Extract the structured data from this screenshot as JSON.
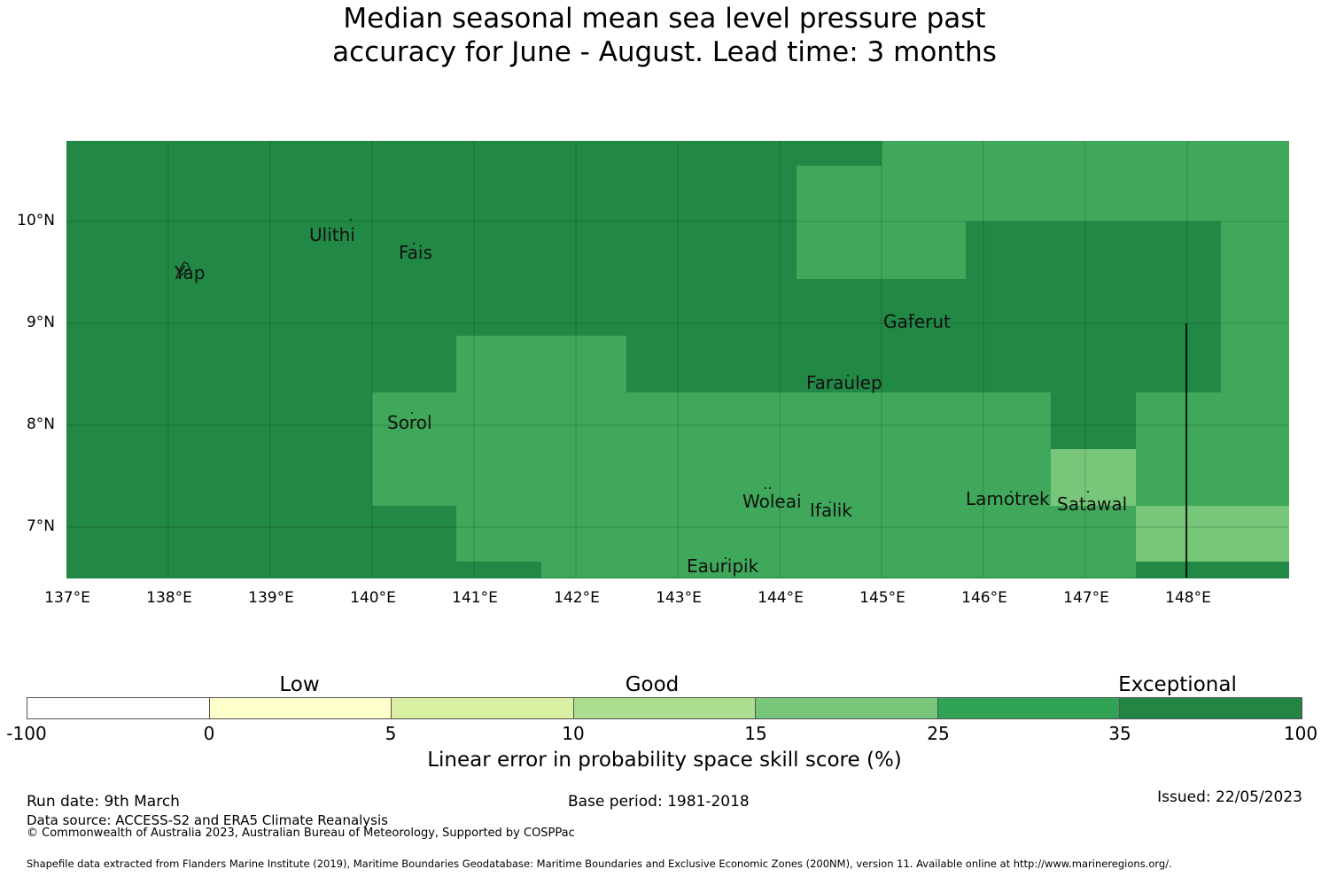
{
  "title": {
    "line1": "Median seasonal mean sea level pressure past",
    "line2": "accuracy for June - August. Lead time: 3 months"
  },
  "map": {
    "lat_labels": [
      "10°N",
      "9°N",
      "8°N",
      "7°N"
    ],
    "lon_labels": [
      "137°E",
      "138°E",
      "139°E",
      "140°E",
      "141°E",
      "142°E",
      "143°E",
      "144°E",
      "145°E",
      "146°E",
      "147°E",
      "148°E"
    ],
    "places": [
      "Ulithi",
      "Fais",
      "Yap",
      "Gaferut",
      "Faraulep",
      "Sorol",
      "Woleai",
      "Ifalik",
      "Lamotrek",
      "Satawal",
      "Eauripik"
    ],
    "category_colors": {
      "exceptional_dark": "#228845",
      "exceptional_light": "#3fa85a",
      "good_high": "#78c679"
    }
  },
  "legend": {
    "categories": [
      "Low",
      "Good",
      "Exceptional"
    ],
    "ticks": [
      "-100",
      "0",
      "5",
      "10",
      "15",
      "25",
      "35",
      "100"
    ],
    "colors": [
      "#ffffff",
      "#ffffcc",
      "#d9f0a3",
      "#addd8e",
      "#78c679",
      "#31a354",
      "#238443"
    ],
    "title": "Linear error in probability space skill score (%)"
  },
  "footer": {
    "run_date": "Run date: 9th March",
    "base_period": "Base period: 1981-2018",
    "issued": "Issued: 22/05/2023",
    "data_source": "Data source: ACCESS-S2 and ERA5 Climate Reanalysis",
    "copyright": "© Commonwealth of Australia 2023, Australian Bureau of Meteorology, Supported by COSPPac",
    "shapefile": "Shapefile data extracted from Flanders Marine Institute (2019), Maritime Boundaries Geodatabase: Maritime Boundaries and Exclusive Economic Zones (200NM), version 11. Available online at http://www.marineregions.org/."
  }
}
